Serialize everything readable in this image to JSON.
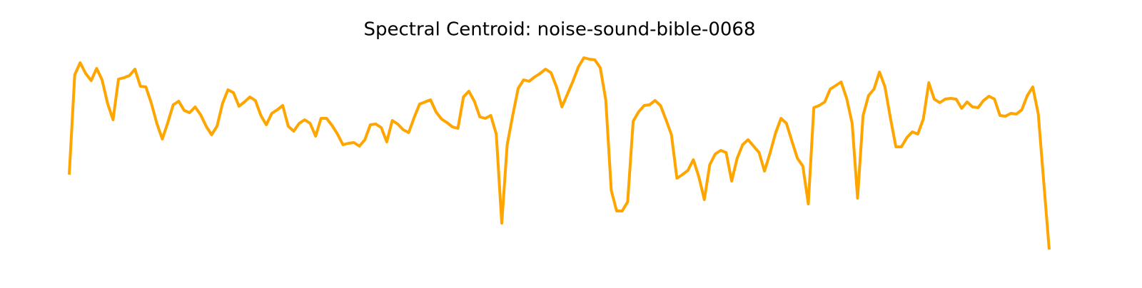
{
  "chart_data": {
    "type": "line",
    "title": "Spectral Centroid: noise-sound-bible-0068",
    "color": "#ffa500",
    "values": [
      155,
      295,
      312,
      297,
      287,
      304,
      288,
      255,
      232,
      289,
      291,
      294,
      303,
      279,
      278,
      255,
      227,
      205,
      228,
      253,
      258,
      245,
      242,
      250,
      239,
      223,
      211,
      223,
      255,
      274,
      270,
      251,
      257,
      264,
      259,
      238,
      225,
      241,
      246,
      252,
      223,
      216,
      227,
      232,
      227,
      209,
      234,
      234,
      224,
      212,
      197,
      199,
      200,
      195,
      204,
      225,
      226,
      221,
      201,
      231,
      226,
      218,
      214,
      235,
      254,
      257,
      260,
      243,
      233,
      228,
      222,
      220,
      264,
      272,
      258,
      236,
      234,
      238,
      212,
      87,
      197,
      238,
      276,
      288,
      286,
      292,
      297,
      303,
      298,
      278,
      250,
      268,
      286,
      306,
      319,
      317,
      316,
      305,
      260,
      133,
      104,
      104,
      117,
      230,
      243,
      252,
      253,
      259,
      252,
      232,
      211,
      150,
      155,
      161,
      176,
      152,
      120,
      169,
      184,
      189,
      186,
      146,
      178,
      197,
      204,
      195,
      186,
      160,
      185,
      213,
      234,
      227,
      202,
      178,
      167,
      114,
      249,
      252,
      257,
      275,
      280,
      285,
      262,
      227,
      122,
      238,
      266,
      275,
      299,
      278,
      234,
      194,
      194,
      207,
      215,
      212,
      233,
      284,
      261,
      256,
      261,
      262,
      261,
      248,
      257,
      250,
      249,
      259,
      265,
      261,
      238,
      237,
      241,
      240,
      246,
      266,
      278,
      240,
      145,
      50
    ]
  }
}
